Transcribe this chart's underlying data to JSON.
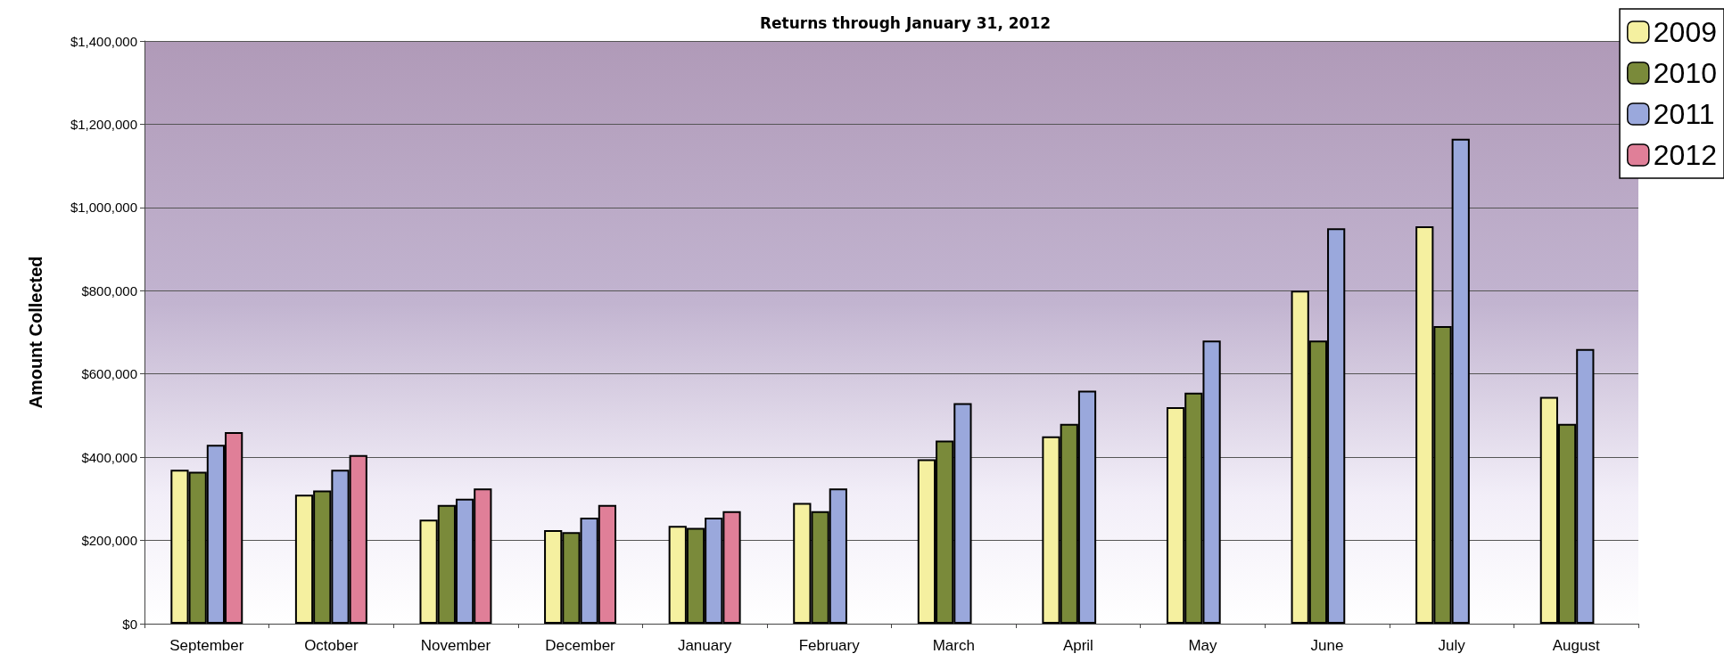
{
  "chart_data": {
    "type": "bar",
    "title": "Returns through January 31, 2012",
    "ylabel": "Amount Collected",
    "categories": [
      "September",
      "October",
      "November",
      "December",
      "January",
      "February",
      "March",
      "April",
      "May",
      "June",
      "July",
      "August"
    ],
    "series": [
      {
        "name": "2009",
        "color": "#f5f0a0",
        "values": [
          370000,
          310000,
          250000,
          225000,
          235000,
          290000,
          395000,
          450000,
          520000,
          800000,
          955000,
          545000
        ]
      },
      {
        "name": "2010",
        "color": "#7a8a3a",
        "values": [
          365000,
          320000,
          285000,
          220000,
          230000,
          270000,
          440000,
          480000,
          555000,
          680000,
          715000,
          480000
        ]
      },
      {
        "name": "2011",
        "color": "#9aa8dc",
        "values": [
          430000,
          370000,
          300000,
          255000,
          255000,
          325000,
          530000,
          560000,
          680000,
          950000,
          1165000,
          660000
        ]
      },
      {
        "name": "2012",
        "color": "#e07f98",
        "values": [
          460000,
          405000,
          325000,
          285000,
          270000,
          null,
          null,
          null,
          null,
          null,
          null,
          null
        ]
      }
    ],
    "ylim": [
      0,
      1400000
    ],
    "yticks": [
      {
        "value": 0,
        "label": "$0"
      },
      {
        "value": 200000,
        "label": "$200,000"
      },
      {
        "value": 400000,
        "label": "$400,000"
      },
      {
        "value": 600000,
        "label": "$600,000"
      },
      {
        "value": 800000,
        "label": "$800,000"
      },
      {
        "value": 1000000,
        "label": "$1,000,000"
      },
      {
        "value": 1200000,
        "label": "$1,200,000"
      },
      {
        "value": 1400000,
        "label": "$1,400,000"
      }
    ],
    "grid": "y",
    "legend": "top right"
  }
}
